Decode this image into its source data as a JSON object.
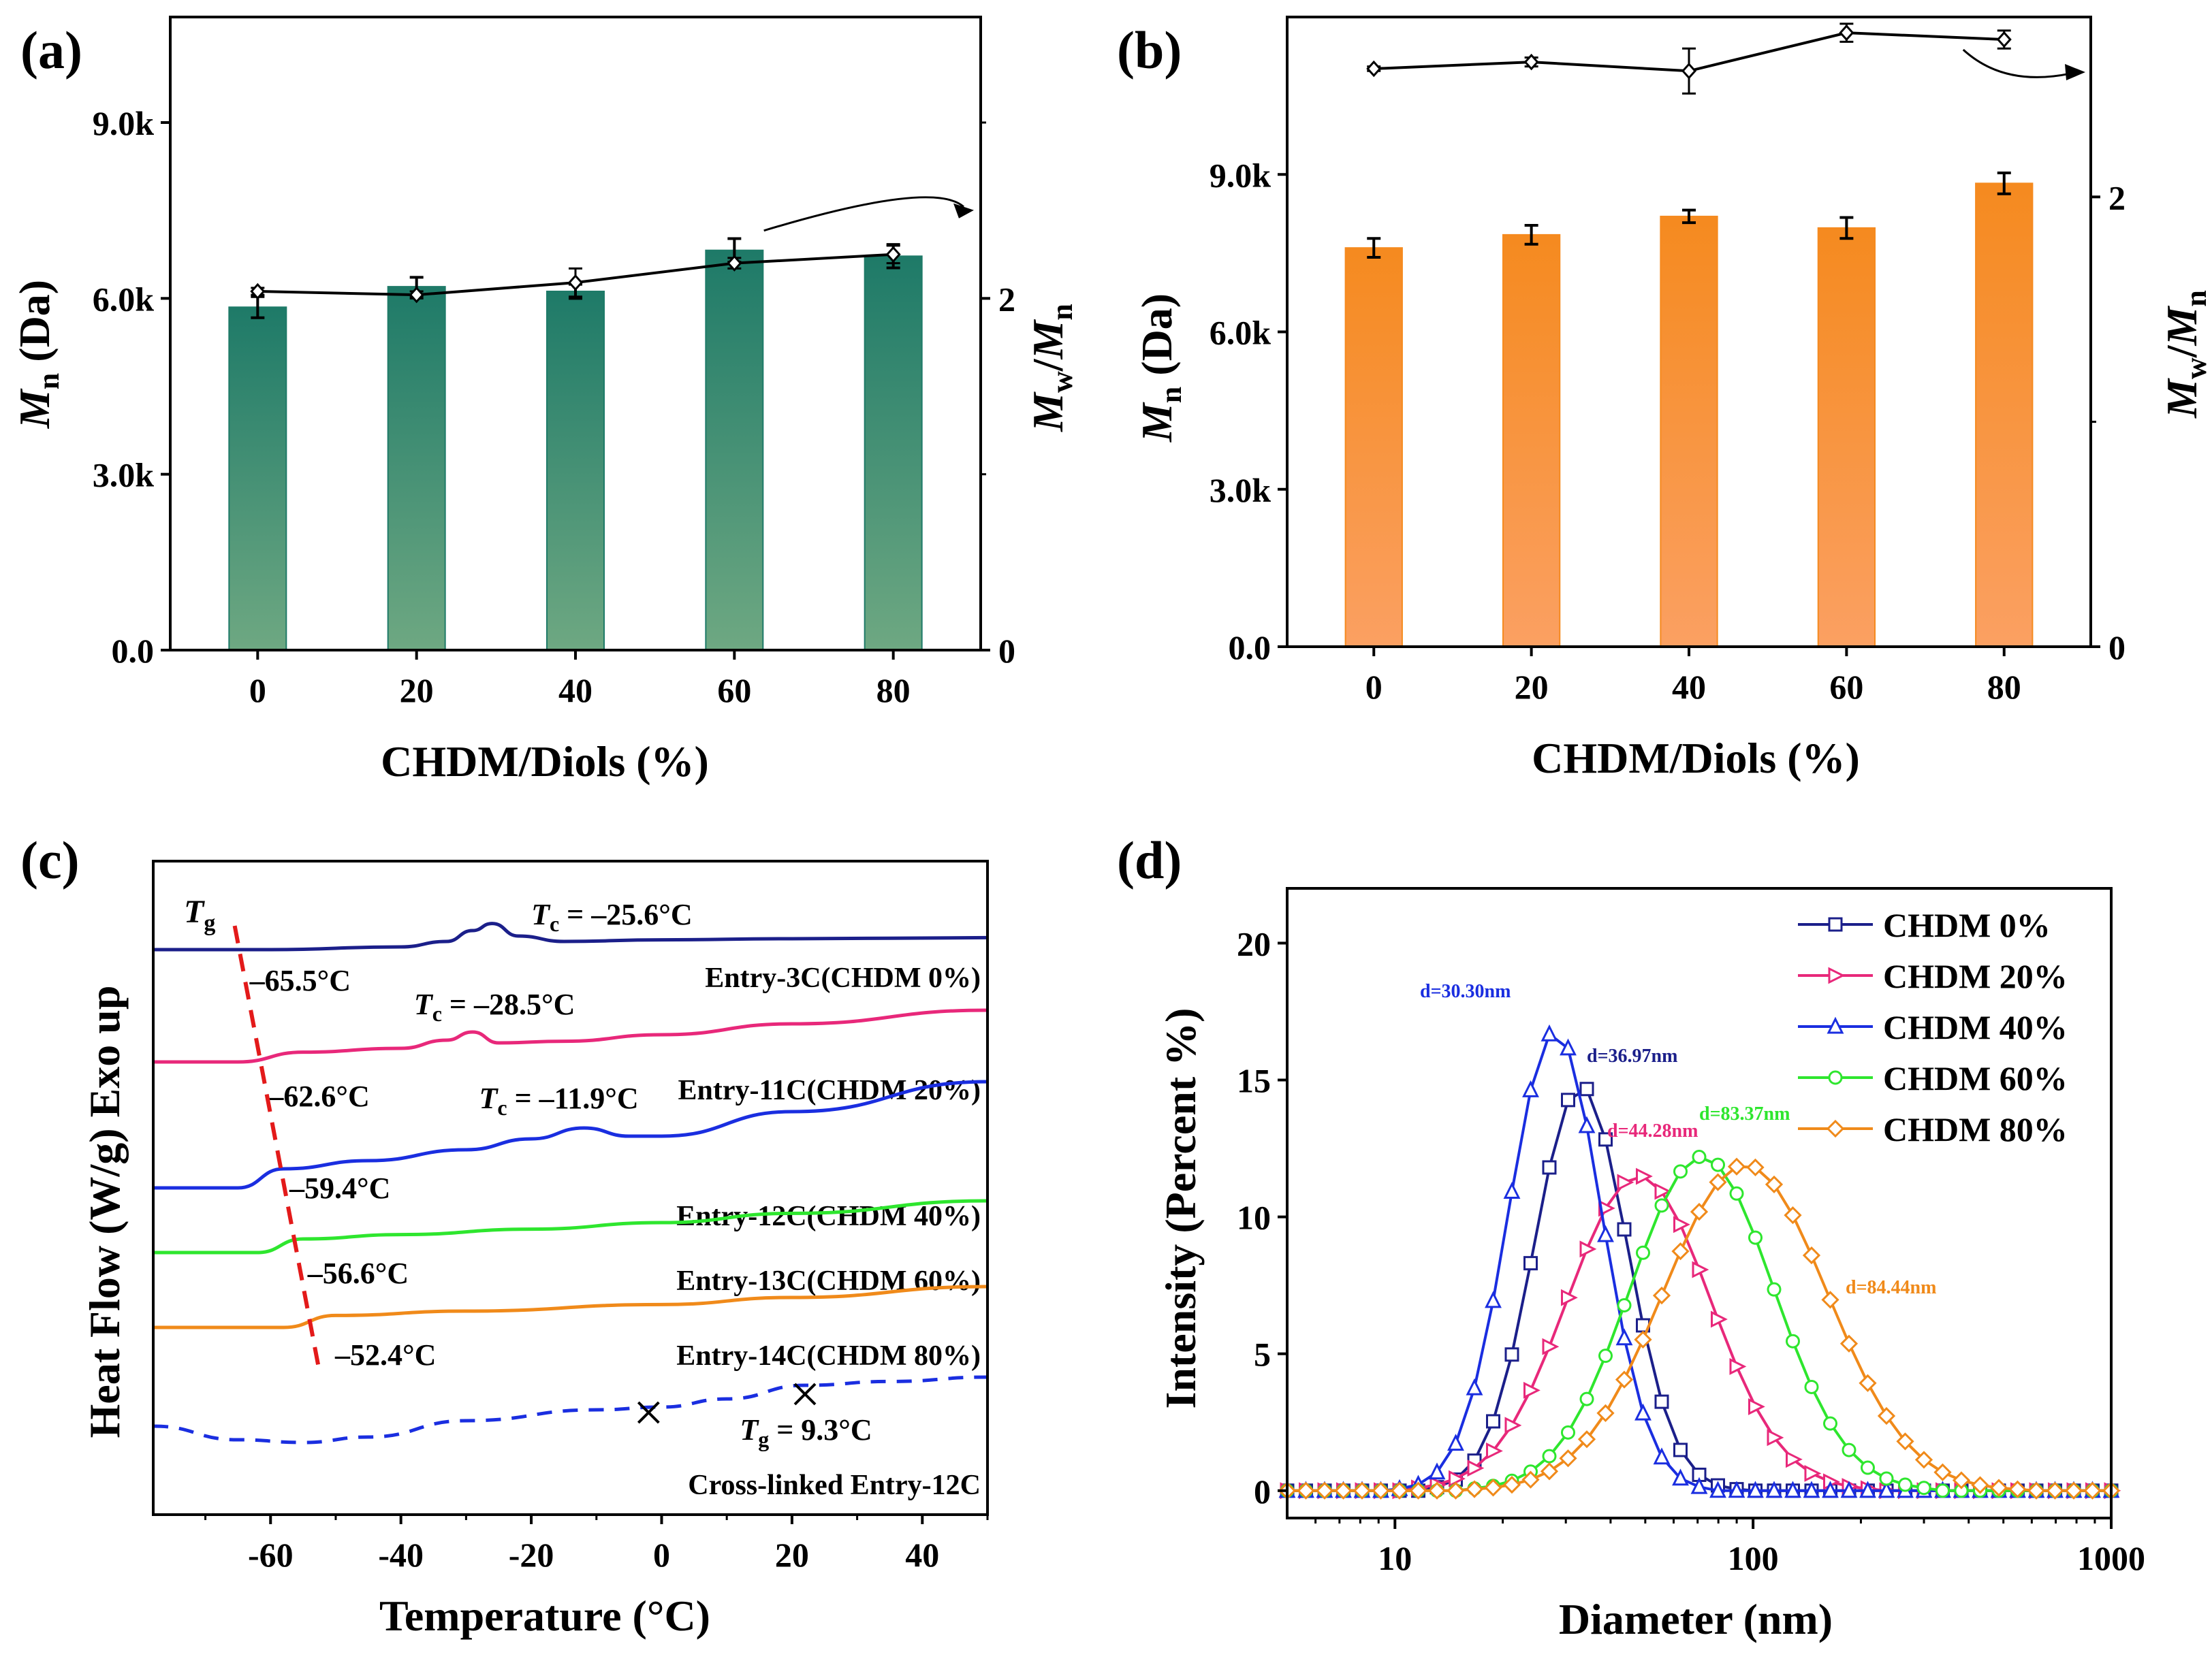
{
  "chart_data": [
    {
      "panel": "(a)",
      "type": "bar",
      "xlabel": "CHDM/Diols (%)",
      "ylabel": {
        "main": "M",
        "sub": "n",
        "rest": " (Da)"
      },
      "y2label": {
        "m1": "M",
        "s1": "w",
        "slash": "/",
        "m2": "M",
        "s2": "n"
      },
      "categories": [
        "0",
        "20",
        "40",
        "60",
        "80"
      ],
      "ylim": [
        0,
        10800
      ],
      "yticks": [
        0,
        3000,
        6000,
        9000
      ],
      "yticklabels": [
        "0.0",
        "3.0k",
        "6.0k",
        "9.0k"
      ],
      "y2lim": [
        0,
        3.6
      ],
      "y2ticks": [
        0,
        2
      ],
      "y2ticklabels": [
        "0",
        "2"
      ],
      "bar_color": "#1e7a68",
      "bar_color_bottom": "#6ea882",
      "series": [
        {
          "name": "Mn",
          "axis": "left",
          "style": "bar",
          "values": [
            5850,
            6200,
            6120,
            6820,
            6720
          ],
          "errors": [
            180,
            160,
            120,
            200,
            200
          ]
        },
        {
          "name": "Mw/Mn",
          "axis": "right",
          "style": "line",
          "marker": "diamond",
          "values": [
            2.04,
            2.02,
            2.09,
            2.2,
            2.25
          ],
          "errors": [
            0.02,
            0.02,
            0.08,
            0.03,
            0.05
          ]
        }
      ]
    },
    {
      "panel": "(b)",
      "type": "bar",
      "xlabel": "CHDM/Diols (%)",
      "ylabel": {
        "main": "M",
        "sub": "n",
        "rest": " (Da)"
      },
      "y2label": {
        "m1": "M",
        "s1": "w",
        "slash": "/",
        "m2": "M",
        "s2": "n"
      },
      "categories": [
        "0",
        "20",
        "40",
        "60",
        "80"
      ],
      "ylim": [
        0,
        12000
      ],
      "yticks": [
        0,
        3000,
        6000,
        9000
      ],
      "yticklabels": [
        "0.0",
        "3.0k",
        "6.0k",
        "9.0k"
      ],
      "y2lim": [
        0,
        2.8
      ],
      "y2ticks": [
        0,
        2
      ],
      "y2ticklabels": [
        "0",
        "2"
      ],
      "bar_color": "#f58a1f",
      "bar_color_bottom": "#fba062",
      "series": [
        {
          "name": "Mn",
          "axis": "left",
          "style": "bar",
          "values": [
            7600,
            7850,
            8200,
            7980,
            8830
          ],
          "errors": [
            180,
            180,
            120,
            200,
            200
          ]
        },
        {
          "name": "Mw/Mn",
          "axis": "right",
          "style": "line",
          "marker": "diamond",
          "values": [
            2.57,
            2.6,
            2.56,
            2.73,
            2.7
          ],
          "errors": [
            0.01,
            0.02,
            0.1,
            0.04,
            0.04
          ]
        }
      ]
    },
    {
      "panel": "(c)",
      "type": "line",
      "xlabel": "Temperature (°C)",
      "ylabel": "Heat Flow (W/g) Exo up",
      "xlim": [
        -78,
        50
      ],
      "xticks": [
        -60,
        -40,
        -20,
        0,
        20,
        40
      ],
      "xticklabels": [
        "-60",
        "-40",
        "-20",
        "0",
        "20",
        "40"
      ],
      "tg_marker": {
        "label_main": "T",
        "label_sub": "g"
      },
      "series": [
        {
          "name": "Entry-3C(CHDM 0%)",
          "color": "#1b1f8a",
          "dash": false,
          "x": [
            -78,
            -60,
            -40,
            -33,
            -29,
            -26,
            -22,
            -15,
            0,
            20,
            50
          ],
          "y": [
            0.0,
            0.0,
            0.05,
            0.15,
            0.35,
            0.48,
            0.25,
            0.15,
            0.18,
            0.2,
            0.22
          ],
          "tc_label": {
            "pre": "T",
            "sub": "c",
            "val": " = –25.6°C"
          },
          "tg_label": "–65.5°C"
        },
        {
          "name": "Entry-11C(CHDM 20%)",
          "color": "#e8287a",
          "dash": false,
          "x": [
            -78,
            -65,
            -55,
            -40,
            -33,
            -29,
            -25,
            -15,
            0,
            20,
            50
          ],
          "y": [
            0.0,
            0.0,
            0.18,
            0.25,
            0.4,
            0.55,
            0.35,
            0.38,
            0.5,
            0.7,
            0.95
          ],
          "tc_label": {
            "pre": "T",
            "sub": "c",
            "val": " = –28.5°C"
          },
          "tg_label": "–62.6°C"
        },
        {
          "name": "Entry-12C(CHDM 40%)",
          "color": "#1a2ee0",
          "dash": false,
          "x": [
            -78,
            -65,
            -58,
            -45,
            -30,
            -20,
            -11.9,
            -5,
            0,
            20,
            50
          ],
          "y": [
            0.0,
            0.0,
            0.35,
            0.5,
            0.7,
            0.9,
            1.1,
            0.95,
            0.95,
            1.4,
            1.95
          ],
          "tc_label": {
            "pre": "T",
            "sub": "c",
            "val": " = –11.9°C"
          },
          "tg_label": "–59.4°C"
        },
        {
          "name": "Entry-13C(CHDM 60%)",
          "color": "#2ee62e",
          "dash": false,
          "x": [
            -78,
            -62,
            -55,
            -40,
            -20,
            0,
            20,
            50
          ],
          "y": [
            0.0,
            0.0,
            0.25,
            0.33,
            0.43,
            0.55,
            0.72,
            0.95
          ]
        },
        {
          "name": "Entry-14C(CHDM 80%)",
          "color": "#f08a1a",
          "dash": false,
          "x": [
            -78,
            -58,
            -50,
            -30,
            0,
            20,
            50
          ],
          "y": [
            0.0,
            0.0,
            0.22,
            0.3,
            0.42,
            0.55,
            0.75
          ]
        },
        {
          "name": "Cross-linked Entry-12C",
          "color": "#1a2ee0",
          "dash": true,
          "x": [
            -78,
            -65,
            -55,
            -45,
            -30,
            -10,
            0,
            10,
            22,
            35,
            50
          ],
          "y": [
            0.0,
            -0.25,
            -0.3,
            -0.2,
            0.1,
            0.3,
            0.35,
            0.5,
            0.75,
            0.82,
            0.9
          ],
          "tg_val": " = 9.3°C"
        }
      ],
      "tg_temps": [
        "–65.5°C",
        "–62.6°C",
        "–59.4°C",
        "–56.6°C",
        "–52.4°C"
      ]
    },
    {
      "panel": "(d)",
      "type": "line",
      "xscale": "log",
      "xlabel": "Diameter (nm)",
      "ylabel": "Intensity (Percent %)",
      "xlim": [
        5,
        1000
      ],
      "ylim": [
        -1,
        22
      ],
      "xticks": [
        10,
        100,
        1000
      ],
      "xticklabels": [
        "10",
        "100",
        "1000"
      ],
      "yticks": [
        0,
        5,
        10,
        15,
        20
      ],
      "yticklabels": [
        "0",
        "5",
        "10",
        "15",
        "20"
      ],
      "series": [
        {
          "name": "CHDM 0%",
          "color": "#1b1f8a",
          "marker": "square",
          "peak_d": 33.0,
          "peak_h": 14.8,
          "sigma": 0.13,
          "annotation": "d=36.97nm"
        },
        {
          "name": "CHDM 20%",
          "color": "#e8287a",
          "marker": "triangle-right",
          "peak_d": 48.0,
          "peak_h": 11.5,
          "sigma": 0.2,
          "annotation": "d=44.28nm"
        },
        {
          "name": "CHDM 40%",
          "color": "#1a2ee0",
          "marker": "triangle-up",
          "peak_d": 28.0,
          "peak_h": 16.8,
          "sigma": 0.13,
          "annotation": "d=30.30nm"
        },
        {
          "name": "CHDM 60%",
          "color": "#2ee62e",
          "marker": "circle",
          "peak_d": 72.0,
          "peak_h": 12.2,
          "sigma": 0.2,
          "annotation": "d=83.37nm"
        },
        {
          "name": "CHDM 80%",
          "color": "#f08a1a",
          "marker": "diamond",
          "peak_d": 95.0,
          "peak_h": 11.9,
          "sigma": 0.23,
          "annotation": "d=84.44nm"
        }
      ]
    }
  ]
}
